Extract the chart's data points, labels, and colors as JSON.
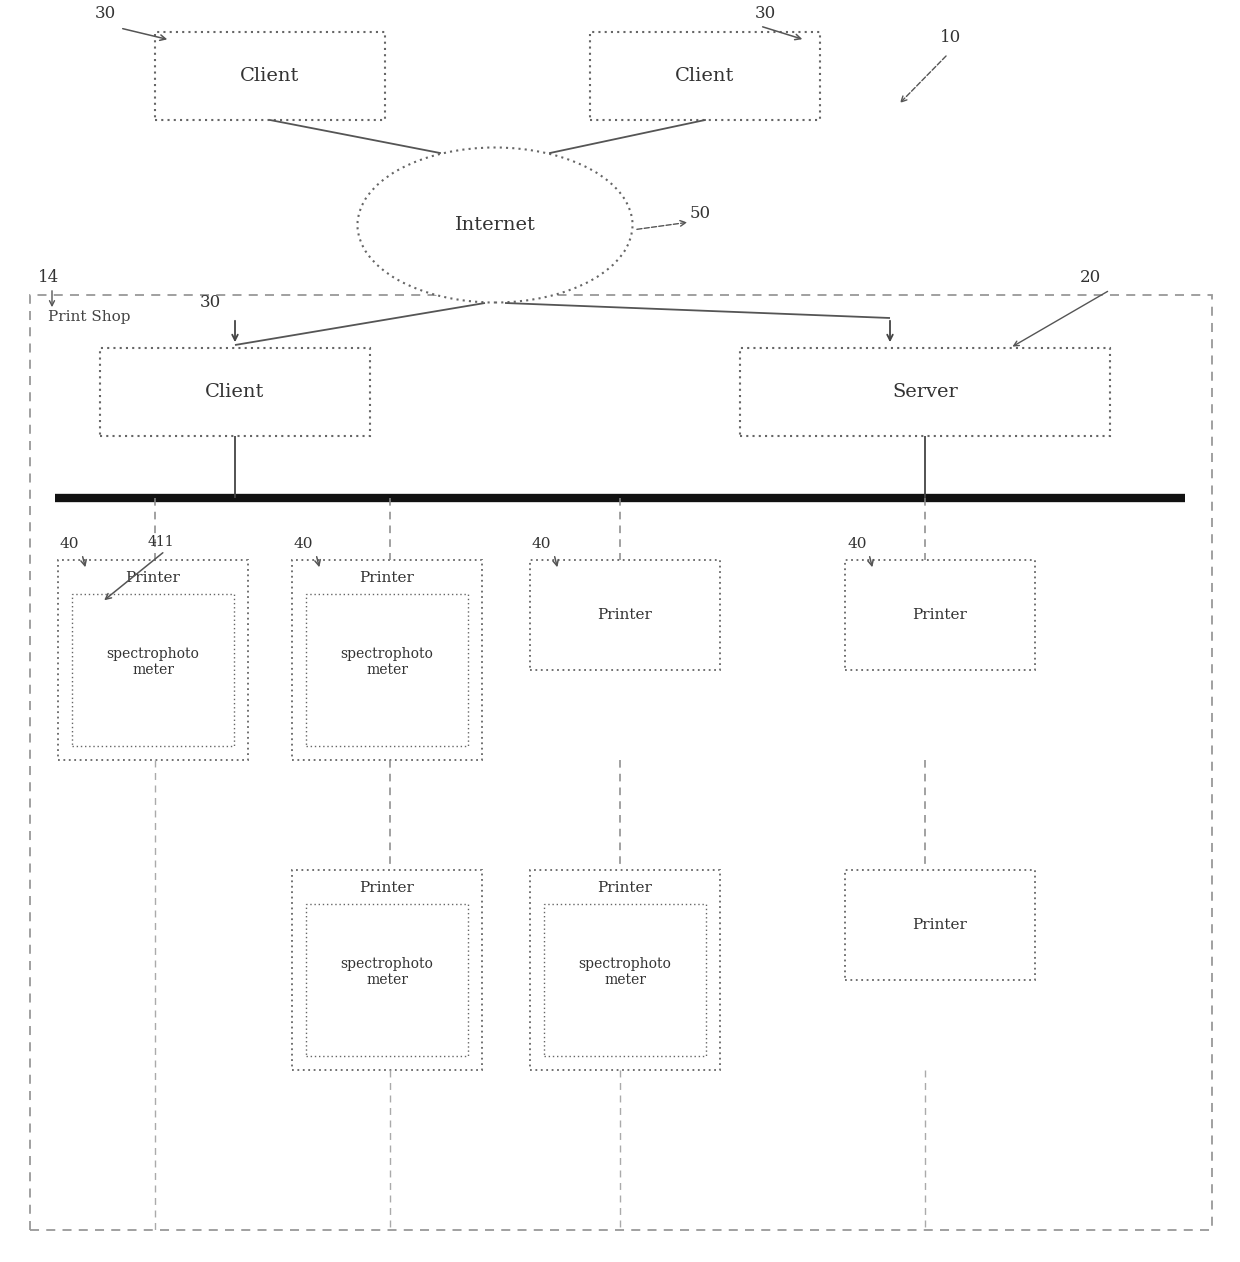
{
  "bg_color": "#ffffff",
  "fig_width": 12.4,
  "fig_height": 12.62,
  "dpi": 100,
  "line_color": "#555555",
  "dash_color": "#777777",
  "text_color": "#333333",
  "thick_line_color": "#111111",
  "dot_dash": [
    1,
    3
  ],
  "sparse_dash": [
    6,
    4
  ]
}
